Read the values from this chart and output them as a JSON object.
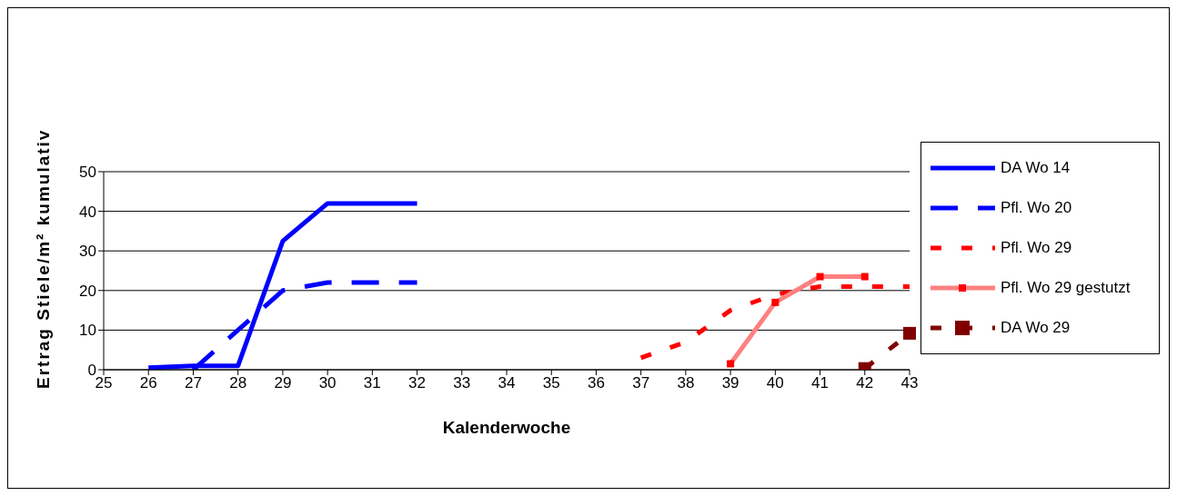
{
  "chart_data": {
    "type": "line",
    "xlabel": "Kalenderwoche",
    "ylabel": "Ertrag Stiele/m² kumulativ",
    "categories": [
      "25",
      "26",
      "27",
      "28",
      "29",
      "30",
      "31",
      "32",
      "33",
      "34",
      "35",
      "36",
      "37",
      "38",
      "39",
      "40",
      "41",
      "42",
      "43"
    ],
    "ylim": [
      0,
      50
    ],
    "yticks": [
      0,
      10,
      20,
      30,
      40,
      50
    ],
    "grid": "y",
    "legend": "right",
    "series": [
      {
        "name": "DA Wo 14",
        "color": "#0000ff",
        "line_style": "solid",
        "marker": "none",
        "values": [
          null,
          0.5,
          1,
          1,
          32.5,
          42,
          42,
          42,
          null,
          null,
          null,
          null,
          null,
          null,
          null,
          null,
          null,
          null,
          null
        ]
      },
      {
        "name": "Pfl. Wo 20",
        "color": "#0000ff",
        "line_style": "dashed",
        "marker": "none",
        "values": [
          null,
          null,
          0,
          10,
          20,
          22,
          22,
          22,
          null,
          null,
          null,
          null,
          null,
          null,
          null,
          null,
          null,
          null,
          null
        ]
      },
      {
        "name": "Pfl. Wo 29",
        "color": "#ff0000",
        "line_style": "dashed",
        "marker": "none",
        "values": [
          null,
          null,
          null,
          null,
          null,
          null,
          null,
          null,
          null,
          null,
          null,
          null,
          3,
          7,
          15,
          19,
          21,
          21,
          21
        ]
      },
      {
        "name": "Pfl. Wo 29 gestutzt",
        "color": "#ff8080",
        "line_style": "solid",
        "marker": "square",
        "values": [
          null,
          null,
          null,
          null,
          null,
          null,
          null,
          null,
          null,
          null,
          null,
          null,
          null,
          null,
          1.5,
          17,
          23.5,
          23.5,
          null
        ]
      },
      {
        "name": "DA Wo 29",
        "color": "#800000",
        "line_style": "dashed",
        "marker": "square",
        "values": [
          null,
          null,
          null,
          null,
          null,
          null,
          null,
          null,
          null,
          null,
          null,
          null,
          null,
          null,
          null,
          null,
          null,
          0.3,
          9.2
        ]
      }
    ]
  }
}
